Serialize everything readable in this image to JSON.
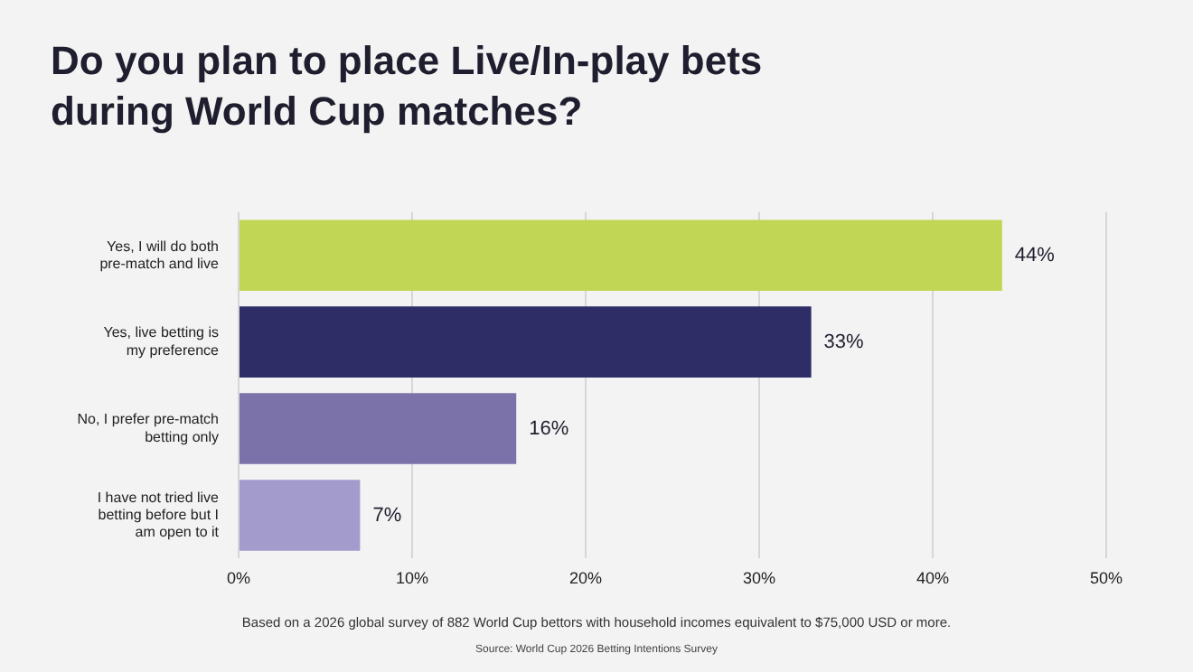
{
  "chart_data": {
    "type": "bar",
    "orientation": "horizontal",
    "title": "Do you plan to place Live/In-play bets during World Cup matches?",
    "categories": [
      "Yes, I will do both pre-match and live",
      "Yes, live betting is my preference",
      "No, I prefer pre-match betting only",
      "I have not tried live betting before but I am open to it"
    ],
    "values": [
      44,
      33,
      16,
      7
    ],
    "colors": [
      "#c2d655",
      "#2e2d66",
      "#7b72aa",
      "#a39bcb"
    ],
    "xlim": [
      0,
      50
    ],
    "xticks": [
      {
        "value": 0,
        "label": "0%"
      },
      {
        "value": 10,
        "label": "10%"
      },
      {
        "value": 20,
        "label": "20%"
      },
      {
        "value": 30,
        "label": "30%"
      },
      {
        "value": 40,
        "label": "40%"
      },
      {
        "value": 50,
        "label": "50%"
      }
    ],
    "grid": "x",
    "value_labels": [
      "44%",
      "33%",
      "16%",
      "7%"
    ],
    "annotations": [
      "Based on a 2026 global survey of 882 World Cup bettors with household incomes equivalent to $75,000 USD or more.",
      "Source: World Cup 2026 Betting Intentions Survey"
    ]
  }
}
